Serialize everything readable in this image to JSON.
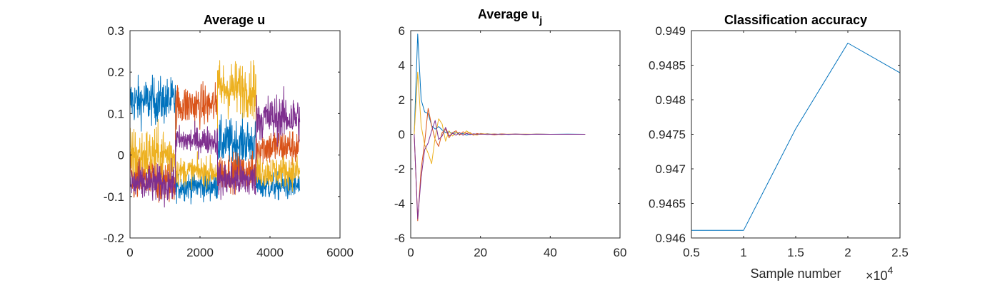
{
  "chart_data": [
    {
      "type": "line",
      "title": "Average u",
      "xlabel": "",
      "ylabel": "",
      "xlim": [
        0,
        6000
      ],
      "ylim": [
        -0.2,
        0.3
      ],
      "xticks": [
        0,
        2000,
        4000,
        6000
      ],
      "yticks": [
        -0.2,
        -0.1,
        0,
        0.1,
        0.2,
        0.3
      ],
      "xtick_labels": [
        "0",
        "2000",
        "4000",
        "6000"
      ],
      "ytick_labels": [
        "-0.2",
        "-0.1",
        "0",
        "0.1",
        "0.2",
        "0.3"
      ],
      "grid": false,
      "noise": [
        {
          "color": "#0072BD",
          "segments": [
            {
              "x": [
                0,
                1300
              ],
              "mean": 0.13,
              "amp": 0.05
            },
            {
              "x": [
                1300,
                2500
              ],
              "mean": -0.075,
              "amp": 0.03
            },
            {
              "x": [
                2500,
                3600
              ],
              "mean": 0.03,
              "amp": 0.05
            },
            {
              "x": [
                3600,
                4850
              ],
              "mean": -0.075,
              "amp": 0.03
            }
          ]
        },
        {
          "color": "#D95319",
          "segments": [
            {
              "x": [
                0,
                1300
              ],
              "mean": -0.06,
              "amp": 0.05
            },
            {
              "x": [
                1300,
                2500
              ],
              "mean": 0.12,
              "amp": 0.045
            },
            {
              "x": [
                2500,
                3600
              ],
              "mean": -0.04,
              "amp": 0.04
            },
            {
              "x": [
                3600,
                4850
              ],
              "mean": 0.02,
              "amp": 0.04
            }
          ]
        },
        {
          "color": "#EDB120",
          "segments": [
            {
              "x": [
                0,
                1300
              ],
              "mean": 0.0,
              "amp": 0.06
            },
            {
              "x": [
                1300,
                2500
              ],
              "mean": -0.04,
              "amp": 0.03
            },
            {
              "x": [
                2500,
                3600
              ],
              "mean": 0.16,
              "amp": 0.06
            },
            {
              "x": [
                3600,
                4850
              ],
              "mean": -0.04,
              "amp": 0.035
            }
          ]
        },
        {
          "color": "#7E2F8E",
          "segments": [
            {
              "x": [
                0,
                1300
              ],
              "mean": -0.07,
              "amp": 0.04
            },
            {
              "x": [
                1300,
                2500
              ],
              "mean": 0.035,
              "amp": 0.03
            },
            {
              "x": [
                2500,
                3600
              ],
              "mean": -0.06,
              "amp": 0.04
            },
            {
              "x": [
                3600,
                4850
              ],
              "mean": 0.09,
              "amp": 0.05
            }
          ]
        }
      ]
    },
    {
      "type": "line",
      "title": "Average u",
      "title_subscript": "j",
      "xlabel": "",
      "ylabel": "",
      "xlim": [
        0,
        60
      ],
      "ylim": [
        -6,
        6
      ],
      "xticks": [
        0,
        20,
        40,
        60
      ],
      "yticks": [
        -6,
        -4,
        -2,
        0,
        2,
        4,
        6
      ],
      "xtick_labels": [
        "0",
        "20",
        "40",
        "60"
      ],
      "ytick_labels": [
        "-6",
        "-4",
        "-2",
        "0",
        "2",
        "4",
        "6"
      ],
      "grid": false,
      "series": [
        {
          "color": "#0072BD",
          "x": [
            1,
            2,
            3,
            4,
            5,
            6,
            7,
            8,
            9,
            10,
            11,
            12,
            13,
            14,
            15,
            16,
            17,
            18,
            19,
            20,
            22,
            24,
            26,
            28,
            30,
            33,
            36,
            40,
            45,
            50
          ],
          "y": [
            0,
            5.8,
            2.0,
            1.3,
            1.2,
            0.5,
            0.3,
            0.45,
            0.25,
            0.1,
            0.15,
            0.05,
            0.1,
            0.0,
            0.05,
            -0.05,
            0.02,
            -0.03,
            0.02,
            0.0,
            0.03,
            -0.02,
            0.02,
            -0.01,
            0.01,
            -0.01,
            0.01,
            0.0,
            0.01,
            0.0
          ]
        },
        {
          "color": "#D95319",
          "x": [
            1,
            2,
            3,
            4,
            5,
            6,
            7,
            8,
            9,
            10,
            11,
            12,
            13,
            14,
            15,
            16,
            17,
            18,
            19,
            20,
            22,
            24,
            26,
            28,
            30,
            33,
            36,
            40,
            45,
            50
          ],
          "y": [
            0,
            -5.0,
            -2.0,
            -0.5,
            1.5,
            0.5,
            -0.3,
            -0.7,
            0.1,
            0.3,
            -0.2,
            0.1,
            0.2,
            -0.05,
            0.15,
            0.05,
            0.1,
            -0.05,
            0.05,
            0.0,
            0.02,
            -0.03,
            0.02,
            0.0,
            0.01,
            -0.01,
            0.01,
            0.0,
            0.0,
            0.0
          ]
        },
        {
          "color": "#EDB120",
          "x": [
            1,
            2,
            3,
            4,
            5,
            6,
            7,
            8,
            9,
            10,
            11,
            12,
            13,
            14,
            15,
            16,
            17,
            18,
            19,
            20,
            22,
            24,
            26,
            28,
            30,
            33,
            36,
            40,
            45,
            50
          ],
          "y": [
            0,
            3.6,
            0.5,
            -0.6,
            -1.1,
            -1.7,
            -0.2,
            0.9,
            0.6,
            -0.4,
            0.2,
            -0.1,
            0.1,
            0.1,
            -0.05,
            0.2,
            0.05,
            0.0,
            -0.05,
            0.05,
            0.0,
            0.02,
            -0.02,
            0.01,
            0.0,
            0.01,
            0.0,
            0.0,
            0.0,
            0.0
          ]
        },
        {
          "color": "#7E2F8E",
          "x": [
            1,
            2,
            3,
            4,
            5,
            6,
            7,
            8,
            9,
            10,
            11,
            12,
            13,
            14,
            15,
            16,
            17,
            18,
            19,
            20,
            22,
            24,
            26,
            28,
            30,
            33,
            36,
            40,
            45,
            50
          ],
          "y": [
            0,
            -4.9,
            -2.5,
            -0.9,
            -0.5,
            0.2,
            0.8,
            -0.3,
            -0.1,
            0.4,
            -0.1,
            0.05,
            -0.05,
            0.1,
            -0.05,
            0.05,
            -0.02,
            0.03,
            0.0,
            0.02,
            -0.01,
            0.01,
            0.0,
            0.0,
            0.01,
            0.0,
            0.0,
            0.0,
            0.0,
            0.0
          ]
        }
      ]
    },
    {
      "type": "line",
      "title": "Classification accuracy",
      "xlabel": "Sample number",
      "ylabel": "",
      "xlim": [
        5000,
        25000
      ],
      "ylim": [
        0.946,
        0.949
      ],
      "xticks": [
        5000,
        10000,
        15000,
        20000,
        25000
      ],
      "yticks": [
        0.946,
        0.9465,
        0.947,
        0.9475,
        0.948,
        0.9485,
        0.949
      ],
      "xtick_labels": [
        "0.5",
        "1",
        "1.5",
        "2",
        "2.5"
      ],
      "ytick_labels": [
        "0.946",
        "0.9465",
        "0.947",
        "0.9475",
        "0.948",
        "0.9485",
        "0.949"
      ],
      "x_exponent_base": "×10",
      "x_exponent_power": "4",
      "grid": false,
      "series": [
        {
          "color": "#0072BD",
          "x": [
            5000,
            10000,
            15000,
            20000,
            25000
          ],
          "y": [
            0.94611,
            0.94611,
            0.94758,
            0.94882,
            0.94839
          ]
        }
      ]
    }
  ]
}
